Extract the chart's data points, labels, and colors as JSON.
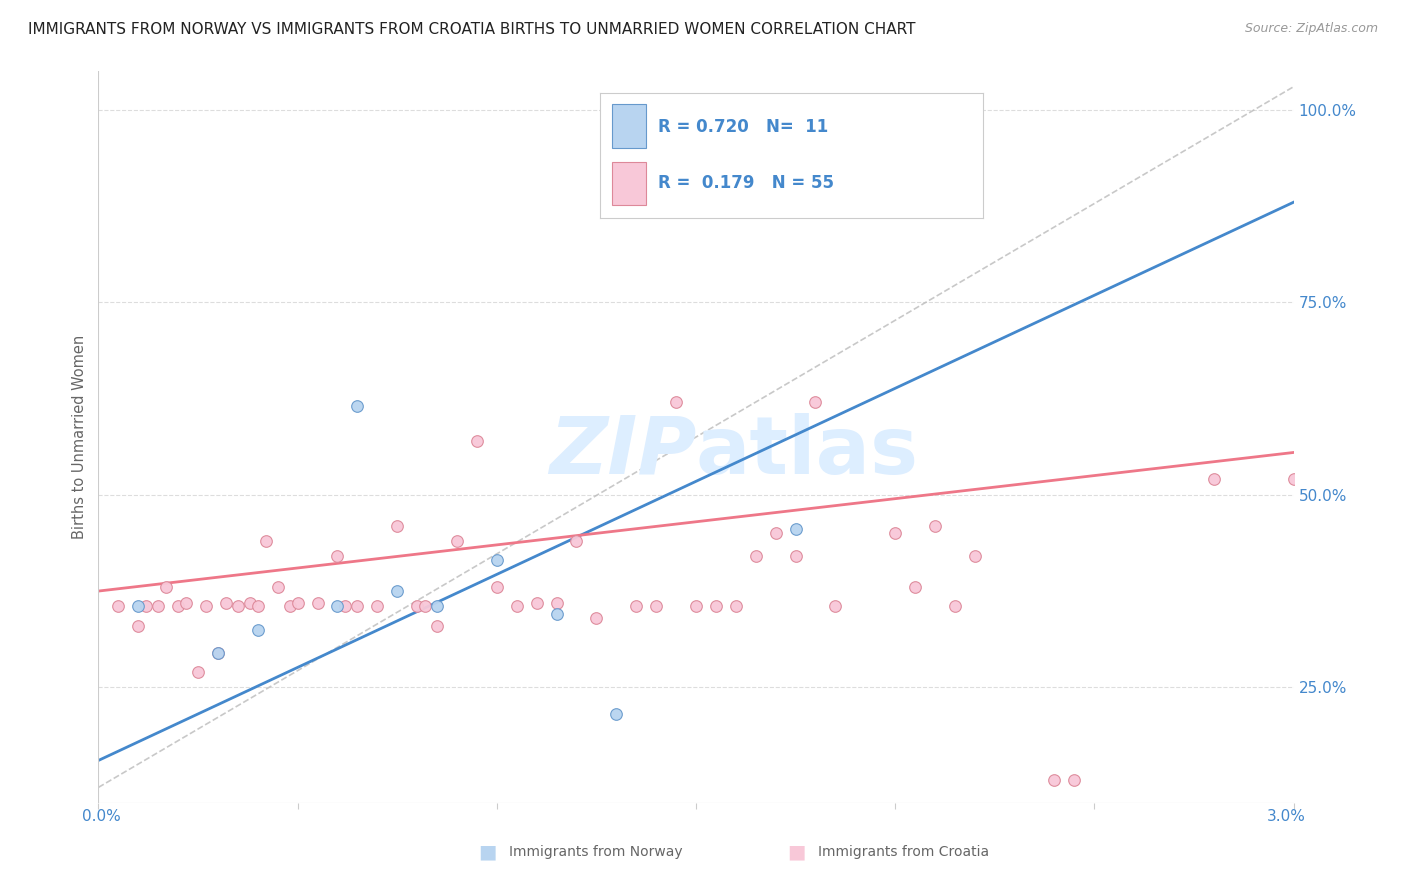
{
  "title": "IMMIGRANTS FROM NORWAY VS IMMIGRANTS FROM CROATIA BIRTHS TO UNMARRIED WOMEN CORRELATION CHART",
  "source": "Source: ZipAtlas.com",
  "ylabel": "Births to Unmarried Women",
  "norway_R": 0.72,
  "norway_N": 11,
  "croatia_R": 0.179,
  "croatia_N": 55,
  "norway_x": [
    0.0001,
    0.0003,
    0.0004,
    0.0006,
    0.00065,
    0.00075,
    0.00085,
    0.001,
    0.00115,
    0.0013,
    0.00175
  ],
  "norway_y": [
    0.355,
    0.295,
    0.325,
    0.355,
    0.615,
    0.375,
    0.355,
    0.415,
    0.345,
    0.215,
    0.455
  ],
  "croatia_x": [
    5e-05,
    0.0001,
    0.00012,
    0.00015,
    0.00017,
    0.0002,
    0.00022,
    0.00025,
    0.00027,
    0.0003,
    0.00032,
    0.00035,
    0.00038,
    0.0004,
    0.00042,
    0.00045,
    0.00048,
    0.0005,
    0.00055,
    0.0006,
    0.00062,
    0.00065,
    0.0007,
    0.00075,
    0.0008,
    0.00082,
    0.00085,
    0.0009,
    0.00095,
    0.001,
    0.00105,
    0.0011,
    0.00115,
    0.0012,
    0.00125,
    0.00135,
    0.0014,
    0.00145,
    0.0015,
    0.00155,
    0.0016,
    0.00165,
    0.0017,
    0.00175,
    0.0018,
    0.00185,
    0.002,
    0.00205,
    0.0021,
    0.00215,
    0.0022,
    0.0024,
    0.00245,
    0.003,
    0.0028
  ],
  "croatia_y": [
    0.355,
    0.33,
    0.355,
    0.355,
    0.38,
    0.355,
    0.36,
    0.27,
    0.355,
    0.295,
    0.36,
    0.355,
    0.36,
    0.355,
    0.44,
    0.38,
    0.355,
    0.36,
    0.36,
    0.42,
    0.355,
    0.355,
    0.355,
    0.46,
    0.355,
    0.355,
    0.33,
    0.44,
    0.57,
    0.38,
    0.355,
    0.36,
    0.36,
    0.44,
    0.34,
    0.355,
    0.355,
    0.62,
    0.355,
    0.355,
    0.355,
    0.42,
    0.45,
    0.42,
    0.62,
    0.355,
    0.45,
    0.38,
    0.46,
    0.355,
    0.42,
    0.13,
    0.13,
    0.52,
    0.52
  ],
  "norway_color": "#b8d4f0",
  "norway_edge_color": "#6699cc",
  "croatia_color": "#f8c8d8",
  "croatia_edge_color": "#dd8899",
  "norway_line_color": "#4488cc",
  "croatia_line_color": "#ee7788",
  "ref_line_color": "#bbbbbb",
  "background_color": "#ffffff",
  "grid_color": "#dddddd",
  "watermark_color": "#ddeeff",
  "title_color": "#222222",
  "axis_label_color": "#666666",
  "right_axis_color": "#4488cc",
  "legend_text_color": "#4488cc",
  "xlim": [
    0.0,
    0.003
  ],
  "ylim": [
    0.1,
    1.05
  ],
  "right_yticks": [
    0.25,
    0.5,
    0.75,
    1.0
  ],
  "right_yticklabels": [
    "25.0%",
    "50.0%",
    "75.0%",
    "100.0%"
  ],
  "marker_size": 70,
  "norway_line_x0": 0.0,
  "norway_line_x1": 0.003,
  "norway_line_y0": 0.155,
  "norway_line_y1": 0.88,
  "croatia_line_x0": 0.0,
  "croatia_line_x1": 0.003,
  "croatia_line_y0": 0.375,
  "croatia_line_y1": 0.555
}
